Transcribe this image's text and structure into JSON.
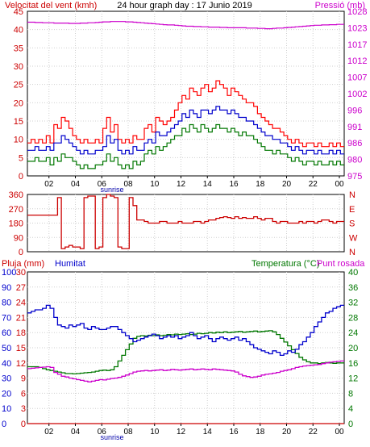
{
  "chart_data": [
    {
      "type": "line",
      "title": "24 hour graph day : 17 Junio 2019",
      "left_axis_label": "Velocitat del vent (kmh)",
      "right_axis_label": "Pressió (mb)",
      "x_ticks": [
        "02",
        "04",
        "06",
        "08",
        "10",
        "12",
        "14",
        "16",
        "18",
        "20",
        "22",
        "00"
      ],
      "x_annotation": "sunrise",
      "left_ylim": [
        0,
        45
      ],
      "left_ticks": [
        "0",
        "5",
        "10",
        "15",
        "20",
        "25",
        "30",
        "35",
        "40",
        "45"
      ],
      "right_ticks": [
        "975",
        "980",
        "986",
        "991",
        "996",
        "1002",
        "1007",
        "1012",
        "1017",
        "1023",
        "1028"
      ],
      "right_ylim": [
        975,
        1028
      ],
      "colors": {
        "wind_max": "#ff0000",
        "wind_avg": "#0000cc",
        "wind_min": "#007700",
        "pressure": "#cc00cc",
        "left_axis": "#cc0000",
        "right_axis": "#cc00cc",
        "sunrise": "#0000aa"
      },
      "series": [
        {
          "key": "gust",
          "color": "#ff0000",
          "values": [
            9,
            10,
            9,
            10,
            9,
            11,
            9,
            14,
            13,
            16,
            15,
            13,
            11,
            10,
            9,
            10,
            9,
            9,
            10,
            9,
            13,
            16,
            12,
            14,
            10,
            9,
            10,
            9,
            11,
            10,
            10,
            13,
            14,
            12,
            16,
            15,
            14,
            15,
            16,
            18,
            20,
            22,
            21,
            24,
            23,
            22,
            24,
            25,
            23,
            24,
            26,
            25,
            24,
            22,
            24,
            23,
            22,
            21,
            20,
            20,
            19,
            17,
            16,
            15,
            14,
            13,
            13,
            12,
            11,
            10,
            9,
            10,
            9,
            8,
            9,
            9,
            8,
            9,
            8,
            8,
            9,
            8,
            9,
            8
          ]
        },
        {
          "key": "wind_avg",
          "values": [
            7,
            7,
            8,
            7,
            7,
            8,
            7,
            9,
            9,
            11,
            10,
            9,
            8,
            7,
            6,
            7,
            6,
            6,
            7,
            7,
            8,
            11,
            9,
            10,
            7,
            6,
            7,
            6,
            8,
            7,
            7,
            9,
            10,
            9,
            12,
            11,
            11,
            12,
            13,
            14,
            15,
            17,
            16,
            18,
            17,
            16,
            18,
            18,
            17,
            18,
            19,
            18,
            18,
            17,
            18,
            17,
            16,
            16,
            15,
            15,
            14,
            13,
            12,
            11,
            11,
            10,
            10,
            9,
            9,
            8,
            7,
            8,
            7,
            6,
            7,
            7,
            6,
            7,
            6,
            6,
            7,
            6,
            7,
            6
          ]
        },
        {
          "key": "wind_min",
          "values": [
            4,
            4,
            5,
            4,
            4,
            5,
            3,
            5,
            4,
            6,
            5,
            5,
            4,
            3,
            2,
            3,
            2,
            2,
            3,
            3,
            4,
            6,
            4,
            5,
            3,
            2,
            3,
            2,
            4,
            3,
            4,
            6,
            7,
            6,
            8,
            7,
            8,
            9,
            10,
            11,
            11,
            13,
            12,
            14,
            13,
            12,
            14,
            13,
            12,
            13,
            14,
            13,
            13,
            12,
            13,
            12,
            11,
            12,
            11,
            11,
            10,
            9,
            8,
            7,
            7,
            6,
            7,
            6,
            6,
            5,
            4,
            5,
            4,
            3,
            4,
            4,
            3,
            4,
            3,
            3,
            4,
            3,
            4,
            3
          ]
        },
        {
          "key": "pressure",
          "values": [
            1024.5,
            1024.5,
            1024.4,
            1024.4,
            1024.3,
            1024.3,
            1024.3,
            1024.2,
            1024.2,
            1024.2,
            1024.2,
            1024.1,
            1024.1,
            1024.1,
            1024.2,
            1024.2,
            1024.3,
            1024.3,
            1024.4,
            1024.5,
            1024.6,
            1024.6,
            1024.7,
            1024.7,
            1024.7,
            1024.7,
            1024.6,
            1024.6,
            1024.5,
            1024.4,
            1024.3,
            1024.2,
            1024.1,
            1024,
            1023.9,
            1023.8,
            1023.7,
            1023.6,
            1023.6,
            1023.5,
            1023.4,
            1023.3,
            1023.2,
            1023.2,
            1023.1,
            1023.1,
            1023,
            1023,
            1022.9,
            1022.9,
            1022.9,
            1022.8,
            1022.8,
            1022.7,
            1022.7,
            1022.7,
            1022.7,
            1022.7,
            1022.6,
            1022.6,
            1022.6,
            1022.5,
            1022.5,
            1022.4,
            1022.4,
            1022.5,
            1022.6,
            1022.6,
            1022.7,
            1022.8,
            1022.9,
            1023,
            1023.1,
            1023.2,
            1023.3,
            1023.4,
            1023.5,
            1023.5,
            1023.6,
            1023.6,
            1023.7,
            1023.7,
            1023.8,
            1023.8
          ]
        }
      ]
    },
    {
      "type": "line",
      "left_ylim": [
        0,
        360
      ],
      "left_ticks": [
        "0",
        "90",
        "180",
        "270",
        "360"
      ],
      "right_ticks": [
        "N",
        "W",
        "S",
        "E",
        "N"
      ],
      "colors": {
        "direction": "#cc0000",
        "axis": "#cc0000"
      },
      "series": [
        {
          "key": "direction",
          "values": [
            230,
            230,
            230,
            230,
            230,
            230,
            230,
            230,
            340,
            20,
            30,
            40,
            30,
            30,
            20,
            340,
            350,
            350,
            20,
            30,
            340,
            360,
            350,
            340,
            30,
            20,
            20,
            340,
            290,
            200,
            200,
            190,
            180,
            180,
            180,
            190,
            190,
            180,
            180,
            180,
            190,
            180,
            180,
            180,
            190,
            190,
            180,
            190,
            200,
            200,
            210,
            215,
            220,
            215,
            210,
            220,
            210,
            215,
            210,
            210,
            220,
            210,
            200,
            210,
            210,
            190,
            180,
            190,
            190,
            180,
            180,
            180,
            190,
            180,
            190,
            190,
            180,
            190,
            200,
            200,
            190,
            180,
            190,
            190
          ]
        }
      ]
    },
    {
      "type": "line",
      "left_axis_label": "Pluja (mm)",
      "humidity_label": "Humitat",
      "right_axis_label": "Temperatura (°C)",
      "dewpoint_label": "Punt rosada",
      "x_ticks": [
        "02",
        "04",
        "06",
        "08",
        "10",
        "12",
        "14",
        "16",
        "18",
        "20",
        "22",
        "00"
      ],
      "x_annotation": "sunrise",
      "rain_ticks": [
        "0",
        "3",
        "6",
        "9",
        "12",
        "15",
        "18",
        "21",
        "24",
        "27",
        "30"
      ],
      "humidity_ticks": [
        "0",
        "10",
        "20",
        "30",
        "40",
        "50",
        "60",
        "70",
        "80",
        "90",
        "100"
      ],
      "temp_ticks": [
        "0",
        "4",
        "8",
        "12",
        "16",
        "20",
        "24",
        "28",
        "32",
        "36",
        "40"
      ],
      "humidity_ylim": [
        0,
        100
      ],
      "temp_ylim": [
        0,
        40
      ],
      "colors": {
        "rain": "#cc0000",
        "humidity": "#0000cc",
        "temperature": "#007700",
        "dewpoint": "#cc00cc",
        "rain_axis": "#cc0000",
        "humidity_axis": "#0000cc",
        "temperature_axis": "#007700",
        "dewpoint_axis": "#cc00cc"
      },
      "series": [
        {
          "key": "humidity",
          "values": [
            73,
            74,
            75,
            75,
            76,
            78,
            76,
            70,
            65,
            64,
            63,
            65,
            64,
            65,
            66,
            63,
            62,
            64,
            63,
            62,
            62,
            63,
            64,
            64,
            62,
            60,
            58,
            56,
            54,
            55,
            56,
            57,
            58,
            59,
            58,
            56,
            57,
            58,
            57,
            58,
            56,
            57,
            58,
            60,
            58,
            56,
            57,
            58,
            56,
            54,
            56,
            57,
            56,
            55,
            56,
            57,
            55,
            56,
            54,
            52,
            50,
            49,
            48,
            47,
            46,
            48,
            47,
            45,
            46,
            48,
            47,
            49,
            52,
            54,
            57,
            60,
            64,
            67,
            70,
            73,
            74,
            76,
            77,
            78
          ]
        },
        {
          "key": "temperature",
          "values": [
            15,
            15,
            15,
            14.8,
            14.5,
            14.2,
            14,
            13.8,
            13.6,
            13.4,
            13.2,
            13.2,
            13.1,
            13.2,
            13.3,
            13.4,
            13.5,
            13.6,
            13.8,
            14,
            14.1,
            14,
            14.2,
            15,
            16.5,
            18,
            19.5,
            21,
            22.5,
            23,
            23.2,
            23.1,
            23.3,
            23.2,
            23.4,
            23.2,
            23.3,
            23.5,
            23.4,
            23.6,
            23.5,
            23.6,
            23.7,
            23.5,
            23.6,
            23.8,
            23.7,
            23.8,
            24,
            23.9,
            24.1,
            24,
            24.2,
            24,
            24.1,
            24.2,
            24.3,
            24.1,
            24.2,
            24.3,
            24.4,
            24.2,
            24.3,
            24.4,
            24.5,
            24.2,
            23.5,
            22.5,
            21.5,
            20.5,
            19.5,
            18.5,
            17.5,
            16.8,
            16.3,
            16,
            16,
            15.8,
            16,
            16.1,
            16,
            15.9,
            16,
            16
          ]
        },
        {
          "key": "dewpoint",
          "values": [
            14.5,
            14.6,
            14.7,
            14.8,
            14.9,
            15,
            14.8,
            13.5,
            13,
            12.5,
            12.3,
            12,
            11.8,
            11.6,
            11.4,
            11.2,
            11,
            11.2,
            11.4,
            11.6,
            11.5,
            11.7,
            11.9,
            12,
            12.2,
            12.5,
            12.8,
            13.2,
            13.6,
            13.8,
            13.9,
            14,
            13.9,
            14,
            14.1,
            14.2,
            14,
            14.1,
            14.3,
            14.2,
            14.1,
            14.2,
            14.3,
            14.4,
            14.2,
            14.3,
            14.4,
            14.3,
            14.2,
            14.4,
            14.3,
            14.2,
            14.1,
            14,
            13.9,
            13.6,
            13,
            12.6,
            12.4,
            12.2,
            12.3,
            12.5,
            12.8,
            13,
            13.1,
            13.3,
            13.5,
            13.8,
            14,
            14.2,
            14.5,
            14.8,
            15,
            15.2,
            15.3,
            15.4,
            15.5,
            15.6,
            15.8,
            16,
            16.2,
            16.3,
            16.4,
            16.5
          ]
        },
        {
          "key": "rain",
          "values": [
            0,
            0,
            0,
            0,
            0,
            0,
            0,
            0,
            0,
            0,
            0,
            0,
            0,
            0,
            0,
            0,
            0,
            0,
            0,
            0,
            0,
            0,
            0,
            0,
            0,
            0,
            0,
            0,
            0,
            0,
            0,
            0,
            0,
            0,
            0,
            0,
            0,
            0,
            0,
            0,
            0,
            0,
            0,
            0,
            0,
            0,
            0,
            0,
            0,
            0,
            0,
            0,
            0,
            0,
            0,
            0,
            0,
            0,
            0,
            0,
            0,
            0,
            0,
            0,
            0,
            0,
            0,
            0,
            0,
            0,
            0,
            0,
            0,
            0,
            0,
            0,
            0,
            0,
            0,
            0,
            0,
            0,
            0,
            0
          ]
        }
      ]
    }
  ]
}
